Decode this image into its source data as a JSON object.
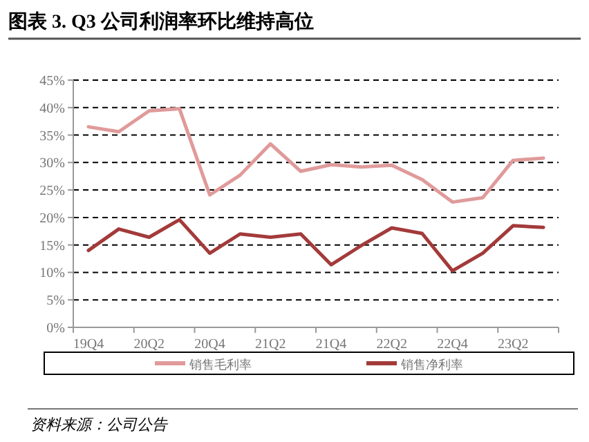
{
  "chart_data": {
    "type": "line",
    "title": "图表 3. Q3 公司利润率环比维持高位",
    "categories": [
      "19Q4",
      null,
      "20Q2",
      null,
      "20Q4",
      null,
      "21Q2",
      null,
      "21Q4",
      null,
      "22Q2",
      null,
      "22Q4",
      null,
      "23Q2",
      null
    ],
    "series": [
      {
        "name": "销售毛利率",
        "color": "#e09a9a",
        "values": [
          36.5,
          35.6,
          39.4,
          39.8,
          24.1,
          27.7,
          33.4,
          28.4,
          29.6,
          29.2,
          29.5,
          26.9,
          22.8,
          23.6,
          30.4,
          30.8
        ]
      },
      {
        "name": "销售净利率",
        "color": "#a33a3a",
        "values": [
          14.0,
          17.9,
          16.4,
          19.6,
          13.5,
          17.0,
          16.4,
          17.0,
          11.4,
          14.9,
          18.1,
          17.1,
          10.3,
          13.5,
          18.5,
          18.2
        ]
      }
    ],
    "ylim": [
      0,
      45
    ],
    "yticks": [
      {
        "value": 0,
        "label": "0%"
      },
      {
        "value": 5,
        "label": "5%"
      },
      {
        "value": 10,
        "label": "10%"
      },
      {
        "value": 15,
        "label": "15%"
      },
      {
        "value": 20,
        "label": "20%"
      },
      {
        "value": 25,
        "label": "25%"
      },
      {
        "value": 30,
        "label": "30%"
      },
      {
        "value": 35,
        "label": "35%"
      },
      {
        "value": 40,
        "label": "40%"
      },
      {
        "value": 45,
        "label": "45%"
      }
    ],
    "grid": "y",
    "legend": "bottom",
    "marker": "none",
    "line_style": "solid",
    "annotations": [
      "资料来源：公司公告"
    ]
  }
}
